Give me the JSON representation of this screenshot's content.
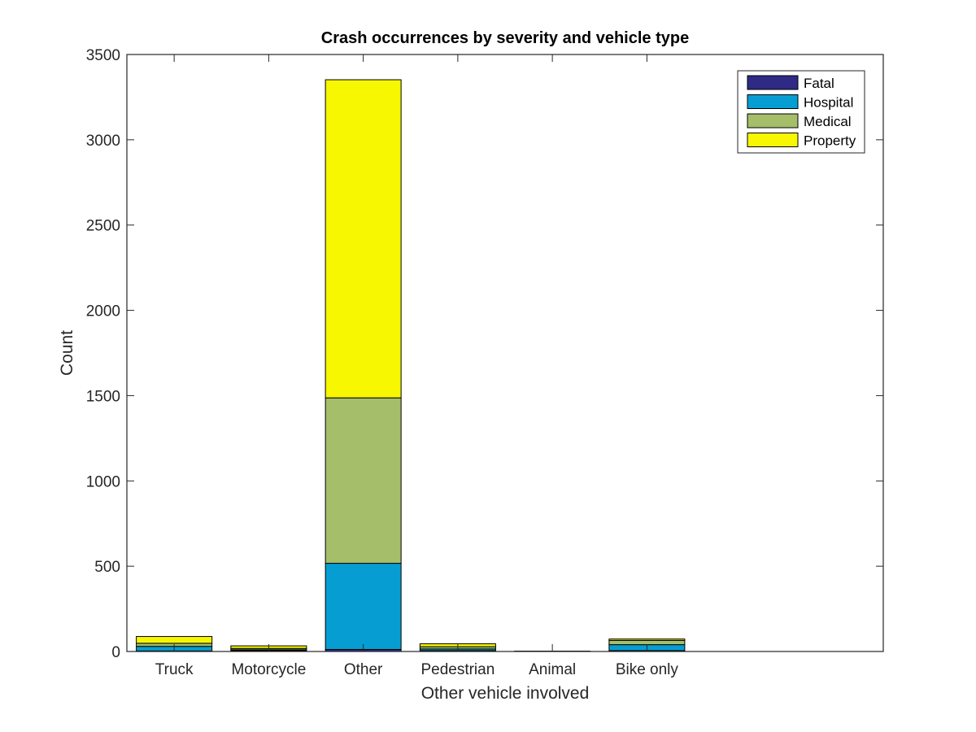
{
  "chart_data": {
    "type": "bar",
    "stacked": true,
    "title": "Crash occurrences by severity and vehicle type",
    "xlabel": "Other vehicle involved",
    "ylabel": "Count",
    "ylim": [
      0,
      3500
    ],
    "yticks": [
      "0",
      "500",
      "1000",
      "1500",
      "2000",
      "2500",
      "3000",
      "3500"
    ],
    "x_slots": 8,
    "categories": [
      "Truck",
      "Motorcycle",
      "Other",
      "Pedestrian",
      "Animal",
      "Bike only"
    ],
    "series": [
      {
        "name": "Fatal",
        "color": "#2e2a85",
        "values": [
          3,
          5,
          12,
          5,
          0,
          5
        ]
      },
      {
        "name": "Hospital",
        "color": "#069ed2",
        "values": [
          27,
          5,
          505,
          10,
          1,
          35
        ]
      },
      {
        "name": "Medical",
        "color": "#a5be69",
        "values": [
          18,
          8,
          970,
          13,
          1,
          25
        ]
      },
      {
        "name": "Property",
        "color": "#f6f700",
        "values": [
          40,
          15,
          1865,
          17,
          0,
          8
        ]
      }
    ],
    "legend_position": "top-right",
    "grid": false
  }
}
